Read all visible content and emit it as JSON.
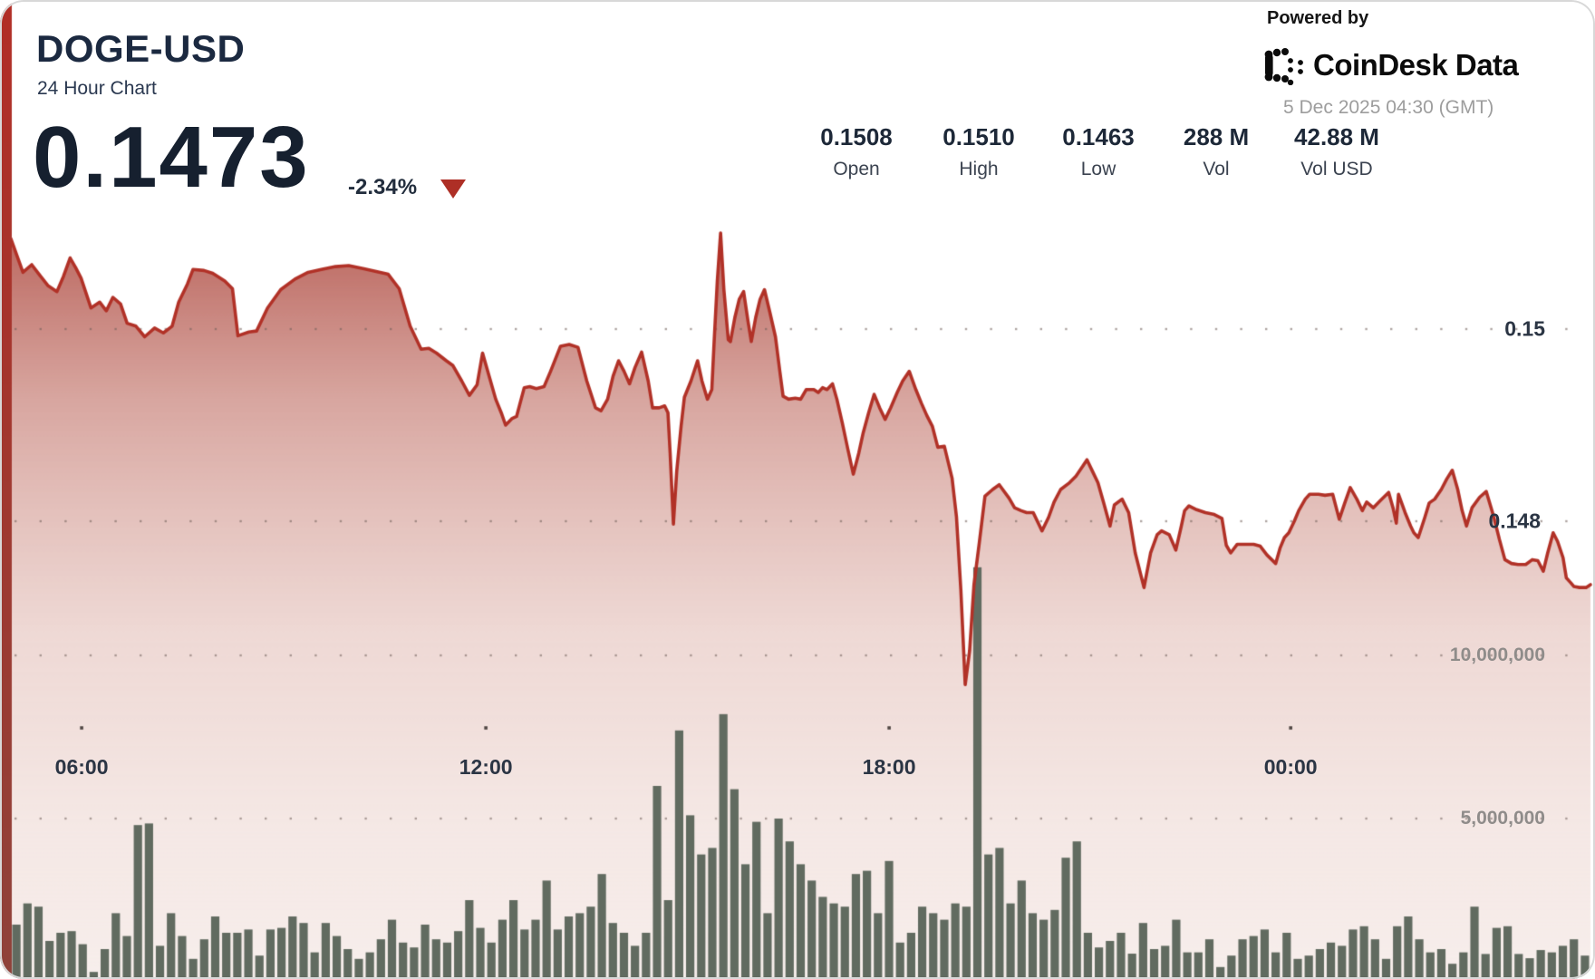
{
  "header": {
    "symbol": "DOGE-USD",
    "subtitle": "24 Hour Chart",
    "last_price": "0.1473",
    "change_percent": "-2.34%"
  },
  "branding": {
    "powered_by": "Powered by",
    "logo_text": "CoinDesk Data",
    "timestamp": "5 Dec 2025 04:30 (GMT)"
  },
  "stats": {
    "columns": [
      {
        "value": "0.1508",
        "label": "Open"
      },
      {
        "value": "0.1510",
        "label": "High"
      },
      {
        "value": "0.1463",
        "label": "Low"
      },
      {
        "value": "288 M",
        "label": "Vol"
      },
      {
        "value": "42.88 M",
        "label": "Vol USD"
      }
    ]
  },
  "colors": {
    "accent_red": "#ae2f26",
    "line_red": "#b13127",
    "navy": "#1b2940",
    "volume_bar": "#616b60",
    "grid_dot": "#9c8a85",
    "tick_dot": "#4f4643",
    "strip_top": "#b22e26",
    "strip_bottom": "#8f423a"
  },
  "chart_data": {
    "type": "line+bar",
    "title": "DOGE-USD 24 Hour Chart",
    "legend_position": "none",
    "grid": "dotted",
    "price_series": {
      "name": "DOGE-USD price",
      "unit": "USD",
      "ylim": [
        0.1455,
        0.1513
      ],
      "open": 0.1508,
      "high": 0.151,
      "low": 0.1463,
      "last": 0.1473,
      "points": [
        [
          0,
          0.15094
        ],
        [
          11,
          0.15059
        ],
        [
          19,
          0.15067
        ],
        [
          27,
          0.15055
        ],
        [
          34,
          0.15045
        ],
        [
          42,
          0.15039
        ],
        [
          48,
          0.15055
        ],
        [
          54,
          0.15074
        ],
        [
          59,
          0.15064
        ],
        [
          64,
          0.15053
        ],
        [
          73,
          0.15022
        ],
        [
          81,
          0.15028
        ],
        [
          87,
          0.15019
        ],
        [
          93,
          0.15033
        ],
        [
          100,
          0.15026
        ],
        [
          106,
          0.15006
        ],
        [
          114,
          0.15003
        ],
        [
          122,
          0.14992
        ],
        [
          131,
          0.15001
        ],
        [
          139,
          0.14996
        ],
        [
          147,
          0.15003
        ],
        [
          153,
          0.15028
        ],
        [
          161,
          0.15047
        ],
        [
          166,
          0.15062
        ],
        [
          176,
          0.15061
        ],
        [
          184,
          0.15058
        ],
        [
          195,
          0.1505
        ],
        [
          202,
          0.15042
        ],
        [
          207,
          0.14993
        ],
        [
          217,
          0.14997
        ],
        [
          224,
          0.14998
        ],
        [
          234,
          0.15022
        ],
        [
          246,
          0.15041
        ],
        [
          259,
          0.15052
        ],
        [
          271,
          0.15059
        ],
        [
          283,
          0.15062
        ],
        [
          296,
          0.15065
        ],
        [
          308,
          0.15066
        ],
        [
          321,
          0.15063
        ],
        [
          333,
          0.1506
        ],
        [
          344,
          0.15057
        ],
        [
          354,
          0.15042
        ],
        [
          364,
          0.15003
        ],
        [
          374,
          0.14979
        ],
        [
          381,
          0.1498
        ],
        [
          388,
          0.14975
        ],
        [
          397,
          0.14967
        ],
        [
          403,
          0.14962
        ],
        [
          411,
          0.14946
        ],
        [
          418,
          0.14931
        ],
        [
          425,
          0.14942
        ],
        [
          430,
          0.14975
        ],
        [
          436,
          0.14951
        ],
        [
          442,
          0.14927
        ],
        [
          447,
          0.14913
        ],
        [
          451,
          0.149
        ],
        [
          457,
          0.14907
        ],
        [
          461,
          0.14909
        ],
        [
          468,
          0.14939
        ],
        [
          473,
          0.1494
        ],
        [
          479,
          0.14938
        ],
        [
          486,
          0.1494
        ],
        [
          492,
          0.14956
        ],
        [
          501,
          0.14982
        ],
        [
          509,
          0.14984
        ],
        [
          517,
          0.14981
        ],
        [
          525,
          0.14946
        ],
        [
          533,
          0.14918
        ],
        [
          538,
          0.14915
        ],
        [
          544,
          0.14927
        ],
        [
          549,
          0.14951
        ],
        [
          554,
          0.14967
        ],
        [
          559,
          0.14956
        ],
        [
          564,
          0.14943
        ],
        [
          569,
          0.1496
        ],
        [
          575,
          0.14976
        ],
        [
          581,
          0.14946
        ],
        [
          585,
          0.14918
        ],
        [
          591,
          0.14918
        ],
        [
          596,
          0.1492
        ],
        [
          599,
          0.14913
        ],
        [
          601,
          0.14871
        ],
        [
          604,
          0.14797
        ],
        [
          607,
          0.14852
        ],
        [
          611,
          0.14899
        ],
        [
          614,
          0.14929
        ],
        [
          620,
          0.14946
        ],
        [
          626,
          0.14967
        ],
        [
          630,
          0.14946
        ],
        [
          635,
          0.14927
        ],
        [
          639,
          0.14937
        ],
        [
          641,
          0.14984
        ],
        [
          644,
          0.1505
        ],
        [
          647,
          0.151
        ],
        [
          650,
          0.15041
        ],
        [
          654,
          0.14989
        ],
        [
          656,
          0.14987
        ],
        [
          660,
          0.15012
        ],
        [
          664,
          0.15031
        ],
        [
          668,
          0.15039
        ],
        [
          672,
          0.15008
        ],
        [
          675,
          0.14987
        ],
        [
          679,
          0.15012
        ],
        [
          683,
          0.15031
        ],
        [
          687,
          0.15041
        ],
        [
          692,
          0.15017
        ],
        [
          697,
          0.14992
        ],
        [
          701,
          0.14956
        ],
        [
          704,
          0.1493
        ],
        [
          709,
          0.14927
        ],
        [
          715,
          0.14928
        ],
        [
          720,
          0.14927
        ],
        [
          725,
          0.14937
        ],
        [
          732,
          0.14937
        ],
        [
          736,
          0.14934
        ],
        [
          740,
          0.14939
        ],
        [
          744,
          0.14937
        ],
        [
          749,
          0.14943
        ],
        [
          753,
          0.14927
        ],
        [
          758,
          0.14902
        ],
        [
          763,
          0.14875
        ],
        [
          768,
          0.14849
        ],
        [
          773,
          0.14871
        ],
        [
          777,
          0.14892
        ],
        [
          782,
          0.14913
        ],
        [
          787,
          0.14932
        ],
        [
          792,
          0.14918
        ],
        [
          797,
          0.14906
        ],
        [
          802,
          0.14918
        ],
        [
          808,
          0.14934
        ],
        [
          813,
          0.14946
        ],
        [
          819,
          0.14956
        ],
        [
          825,
          0.14937
        ],
        [
          830,
          0.14923
        ],
        [
          835,
          0.1491
        ],
        [
          840,
          0.14899
        ],
        [
          845,
          0.14877
        ],
        [
          851,
          0.14878
        ],
        [
          858,
          0.14845
        ],
        [
          862,
          0.14805
        ],
        [
          866,
          0.14729
        ],
        [
          870,
          0.1463
        ],
        [
          874,
          0.14665
        ],
        [
          878,
          0.14734
        ],
        [
          883,
          0.14779
        ],
        [
          888,
          0.14826
        ],
        [
          895,
          0.14833
        ],
        [
          901,
          0.14838
        ],
        [
          910,
          0.14824
        ],
        [
          915,
          0.14814
        ],
        [
          921,
          0.14811
        ],
        [
          926,
          0.14809
        ],
        [
          932,
          0.14809
        ],
        [
          940,
          0.1479
        ],
        [
          946,
          0.14804
        ],
        [
          951,
          0.1482
        ],
        [
          957,
          0.14833
        ],
        [
          965,
          0.1484
        ],
        [
          971,
          0.14847
        ],
        [
          977,
          0.14857
        ],
        [
          981,
          0.14864
        ],
        [
          986,
          0.14852
        ],
        [
          991,
          0.1484
        ],
        [
          996,
          0.1482
        ],
        [
          1002,
          0.14795
        ],
        [
          1006,
          0.14817
        ],
        [
          1013,
          0.14823
        ],
        [
          1019,
          0.14809
        ],
        [
          1025,
          0.14767
        ],
        [
          1033,
          0.14731
        ],
        [
          1039,
          0.14767
        ],
        [
          1045,
          0.14786
        ],
        [
          1049,
          0.1479
        ],
        [
          1056,
          0.14786
        ],
        [
          1062,
          0.1477
        ],
        [
          1067,
          0.14795
        ],
        [
          1070,
          0.14811
        ],
        [
          1074,
          0.14816
        ],
        [
          1081,
          0.14812
        ],
        [
          1089,
          0.14809
        ],
        [
          1097,
          0.14807
        ],
        [
          1104,
          0.14803
        ],
        [
          1108,
          0.14775
        ],
        [
          1112,
          0.14767
        ],
        [
          1118,
          0.14776
        ],
        [
          1126,
          0.14776
        ],
        [
          1133,
          0.14776
        ],
        [
          1139,
          0.14774
        ],
        [
          1145,
          0.14765
        ],
        [
          1153,
          0.14756
        ],
        [
          1157,
          0.14772
        ],
        [
          1161,
          0.14783
        ],
        [
          1165,
          0.14788
        ],
        [
          1170,
          0.148
        ],
        [
          1174,
          0.14811
        ],
        [
          1180,
          0.14823
        ],
        [
          1184,
          0.14828
        ],
        [
          1192,
          0.14828
        ],
        [
          1198,
          0.14827
        ],
        [
          1205,
          0.14828
        ],
        [
          1211,
          0.14802
        ],
        [
          1216,
          0.14819
        ],
        [
          1221,
          0.14835
        ],
        [
          1227,
          0.14823
        ],
        [
          1232,
          0.14811
        ],
        [
          1236,
          0.1482
        ],
        [
          1242,
          0.14814
        ],
        [
          1248,
          0.14821
        ],
        [
          1256,
          0.1483
        ],
        [
          1260,
          0.14814
        ],
        [
          1263,
          0.14798
        ],
        [
          1265,
          0.14828
        ],
        [
          1271,
          0.14809
        ],
        [
          1276,
          0.14795
        ],
        [
          1279,
          0.14788
        ],
        [
          1283,
          0.14783
        ],
        [
          1289,
          0.14804
        ],
        [
          1293,
          0.14819
        ],
        [
          1298,
          0.14823
        ],
        [
          1304,
          0.14833
        ],
        [
          1309,
          0.14844
        ],
        [
          1314,
          0.14853
        ],
        [
          1319,
          0.14833
        ],
        [
          1323,
          0.14811
        ],
        [
          1327,
          0.14795
        ],
        [
          1332,
          0.14814
        ],
        [
          1339,
          0.14825
        ],
        [
          1345,
          0.14831
        ],
        [
          1352,
          0.14804
        ],
        [
          1357,
          0.14781
        ],
        [
          1362,
          0.1476
        ],
        [
          1368,
          0.14756
        ],
        [
          1374,
          0.14755
        ],
        [
          1381,
          0.14755
        ],
        [
          1387,
          0.1476
        ],
        [
          1392,
          0.14759
        ],
        [
          1397,
          0.14748
        ],
        [
          1401,
          0.14767
        ],
        [
          1406,
          0.14788
        ],
        [
          1410,
          0.14779
        ],
        [
          1415,
          0.14762
        ],
        [
          1418,
          0.14741
        ],
        [
          1422,
          0.14736
        ],
        [
          1425,
          0.14732
        ],
        [
          1430,
          0.14731
        ],
        [
          1436,
          0.14731
        ],
        [
          1440,
          0.14734
        ]
      ]
    },
    "volume_series": {
      "name": "Volume",
      "unit": "millions",
      "interval_minutes": 10,
      "values": [
        1.75,
        2.4,
        2.3,
        1.25,
        1.5,
        1.55,
        1.15,
        0.3,
        1.0,
        2.1,
        1.4,
        4.8,
        4.85,
        1.1,
        2.1,
        1.4,
        0.7,
        1.3,
        2.0,
        1.5,
        1.5,
        1.6,
        0.8,
        1.6,
        1.65,
        2.0,
        1.8,
        0.9,
        1.8,
        1.4,
        1.0,
        0.7,
        0.9,
        1.3,
        1.9,
        1.2,
        1.05,
        1.75,
        1.3,
        1.2,
        1.55,
        2.5,
        1.65,
        1.2,
        1.9,
        2.5,
        1.6,
        1.9,
        3.1,
        1.6,
        2.0,
        2.1,
        2.3,
        3.3,
        1.8,
        1.5,
        1.1,
        1.5,
        6.0,
        2.5,
        7.7,
        5.1,
        3.9,
        4.1,
        8.2,
        5.9,
        3.6,
        4.9,
        2.1,
        5.0,
        4.3,
        3.6,
        3.1,
        2.6,
        2.4,
        2.3,
        3.3,
        3.4,
        2.1,
        3.7,
        1.2,
        1.5,
        2.3,
        2.1,
        1.9,
        2.4,
        2.3,
        12.7,
        3.9,
        4.1,
        2.4,
        3.1,
        2.1,
        1.9,
        2.2,
        3.8,
        4.3,
        1.5,
        1.05,
        1.25,
        1.5,
        0.86,
        1.8,
        1.0,
        1.1,
        1.9,
        0.9,
        0.9,
        1.3,
        0.45,
        0.8,
        1.3,
        1.4,
        1.6,
        0.9,
        1.5,
        0.7,
        0.8,
        1.0,
        1.2,
        1.1,
        1.6,
        1.7,
        1.3,
        0.7,
        1.7,
        2.0,
        1.3,
        0.9,
        1.0,
        0.55,
        0.9,
        2.3,
        0.85,
        1.65,
        1.7,
        0.85,
        0.72,
        0.97,
        0.9,
        1.1,
        1.3,
        0.8
      ]
    },
    "y_axis_price": {
      "side": "right",
      "ticks": [
        {
          "label": "0.15",
          "value": 0.15
        },
        {
          "label": "0.148",
          "value": 0.148
        }
      ]
    },
    "y_axis_volume": {
      "side": "right",
      "ticks": [
        {
          "label": "10,000,000",
          "value": 10
        },
        {
          "label": "5,000,000",
          "value": 5
        }
      ]
    },
    "x_axis": {
      "ticks": [
        {
          "label": "06:00",
          "pos": 0.0448
        },
        {
          "label": "12:00",
          "pos": 0.3007
        },
        {
          "label": "18:00",
          "pos": 0.556
        },
        {
          "label": "00:00",
          "pos": 0.8102
        }
      ]
    }
  }
}
